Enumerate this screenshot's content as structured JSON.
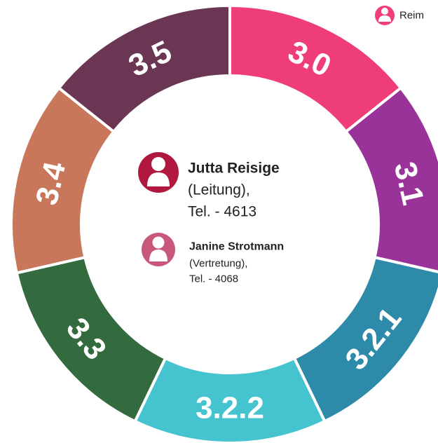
{
  "legend": {
    "label": "Reim"
  },
  "segments": [
    {
      "label": "3.0",
      "color": "#ef3d78"
    },
    {
      "label": "3.1",
      "color": "#993399"
    },
    {
      "label": "3.2.1",
      "color": "#2d8aa9"
    },
    {
      "label": "3.2.2",
      "color": "#45c3cf"
    },
    {
      "label": "3.3",
      "color": "#336a3e"
    },
    {
      "label": "3.4",
      "color": "#c8775b"
    },
    {
      "label": "3.5",
      "color": "#6b3653"
    }
  ],
  "contacts": [
    {
      "name": "Jutta Reisige",
      "role": "(Leitung),",
      "phone": "Tel. - 4613"
    },
    {
      "name": "Janine Strotmann",
      "role": "(Vertretung),",
      "phone": "Tel. - 4068"
    }
  ]
}
